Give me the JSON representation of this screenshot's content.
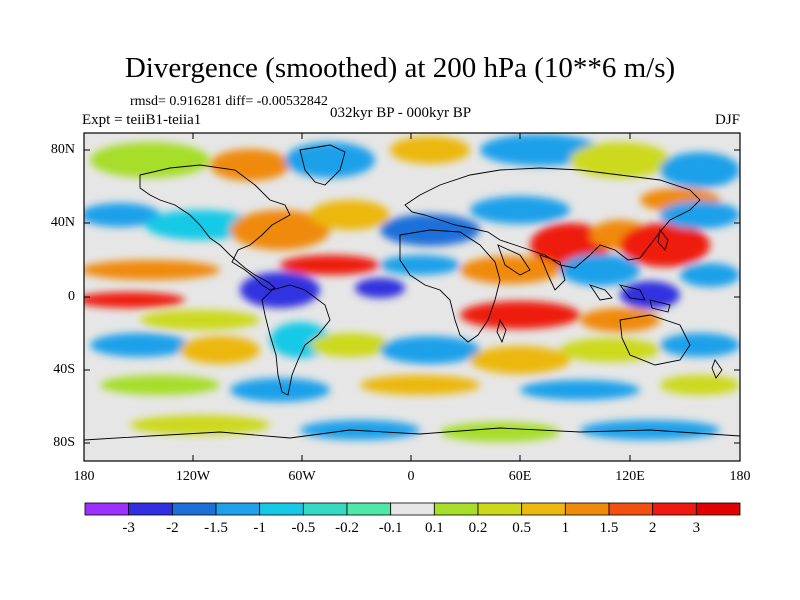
{
  "title": "Divergence (smoothed) at 200 hPa (10**6 m/s)",
  "rmsd_text": "rmsd= 0.916281  diff= -0.00532842",
  "expt_text": "Expt = teiiB1-teiia1",
  "period_text": "032kyr BP - 000kyr BP",
  "season_text": "DJF",
  "lat_labels": [
    "80N",
    "40N",
    "0",
    "40S",
    "80S"
  ],
  "lon_labels": [
    "180",
    "120W",
    "60W",
    "0",
    "60E",
    "120E",
    "180"
  ],
  "colorbar": {
    "labels": [
      "-3",
      "-2",
      "-1.5",
      "-1",
      "-0.5",
      "-0.2",
      "-0.1",
      "0.1",
      "0.2",
      "0.5",
      "1",
      "1.5",
      "2",
      "3"
    ],
    "colors": [
      "#9b30ff",
      "#3030e0",
      "#1f6fd9",
      "#1ea0ea",
      "#15c9e6",
      "#35d8c0",
      "#4ee8a8",
      "#e6e6e6",
      "#a6de2a",
      "#ccd91a",
      "#ecb80e",
      "#f08a0a",
      "#f25010",
      "#ee1a10",
      "#e00000"
    ]
  }
}
